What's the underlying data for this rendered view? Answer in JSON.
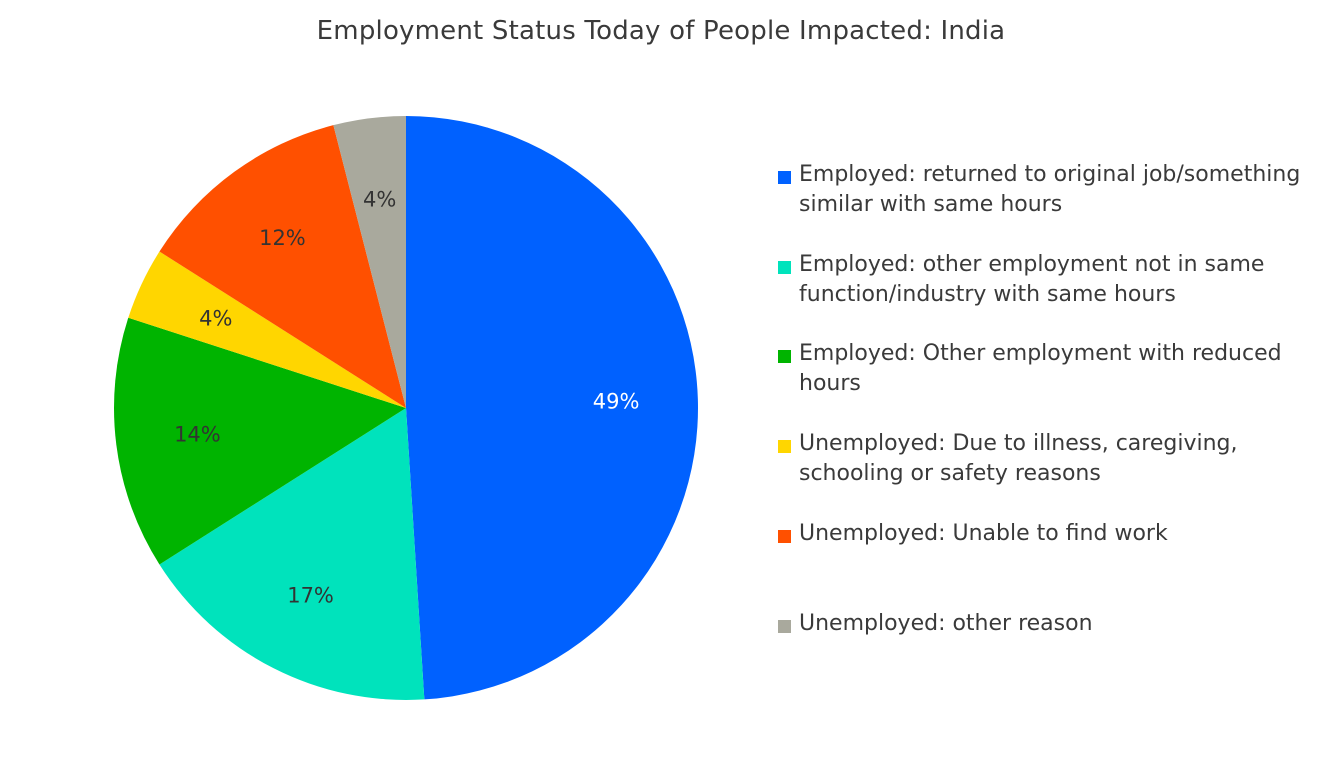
{
  "chart_data": {
    "type": "pie",
    "title": "Employment Status Today of People Impacted: India",
    "legend_position": "right",
    "slices": [
      {
        "label": "Employed: returned to original job/something similar with same hours",
        "value": 49,
        "value_label": "49%",
        "color": "#0061FF",
        "label_color": "#ffffff"
      },
      {
        "label": "Employed: other employment not in same function/industry with same hours",
        "value": 17,
        "value_label": "17%",
        "color": "#00E3BC",
        "label_color": "#333333"
      },
      {
        "label": "Employed: Other employment with reduced hours",
        "value": 14,
        "value_label": "14%",
        "color": "#00B400",
        "label_color": "#333333"
      },
      {
        "label": "Unemployed: Due to illness, caregiving, schooling or safety reasons",
        "value": 4,
        "value_label": "4%",
        "color": "#FFD600",
        "label_color": "#333333"
      },
      {
        "label": "Unemployed: Unable to find work",
        "value": 12,
        "value_label": "12%",
        "color": "#FF5000",
        "label_color": "#333333"
      },
      {
        "label": "Unemployed: other reason",
        "value": 4,
        "value_label": "4%",
        "color": "#A9A99D",
        "label_color": "#333333"
      }
    ]
  }
}
